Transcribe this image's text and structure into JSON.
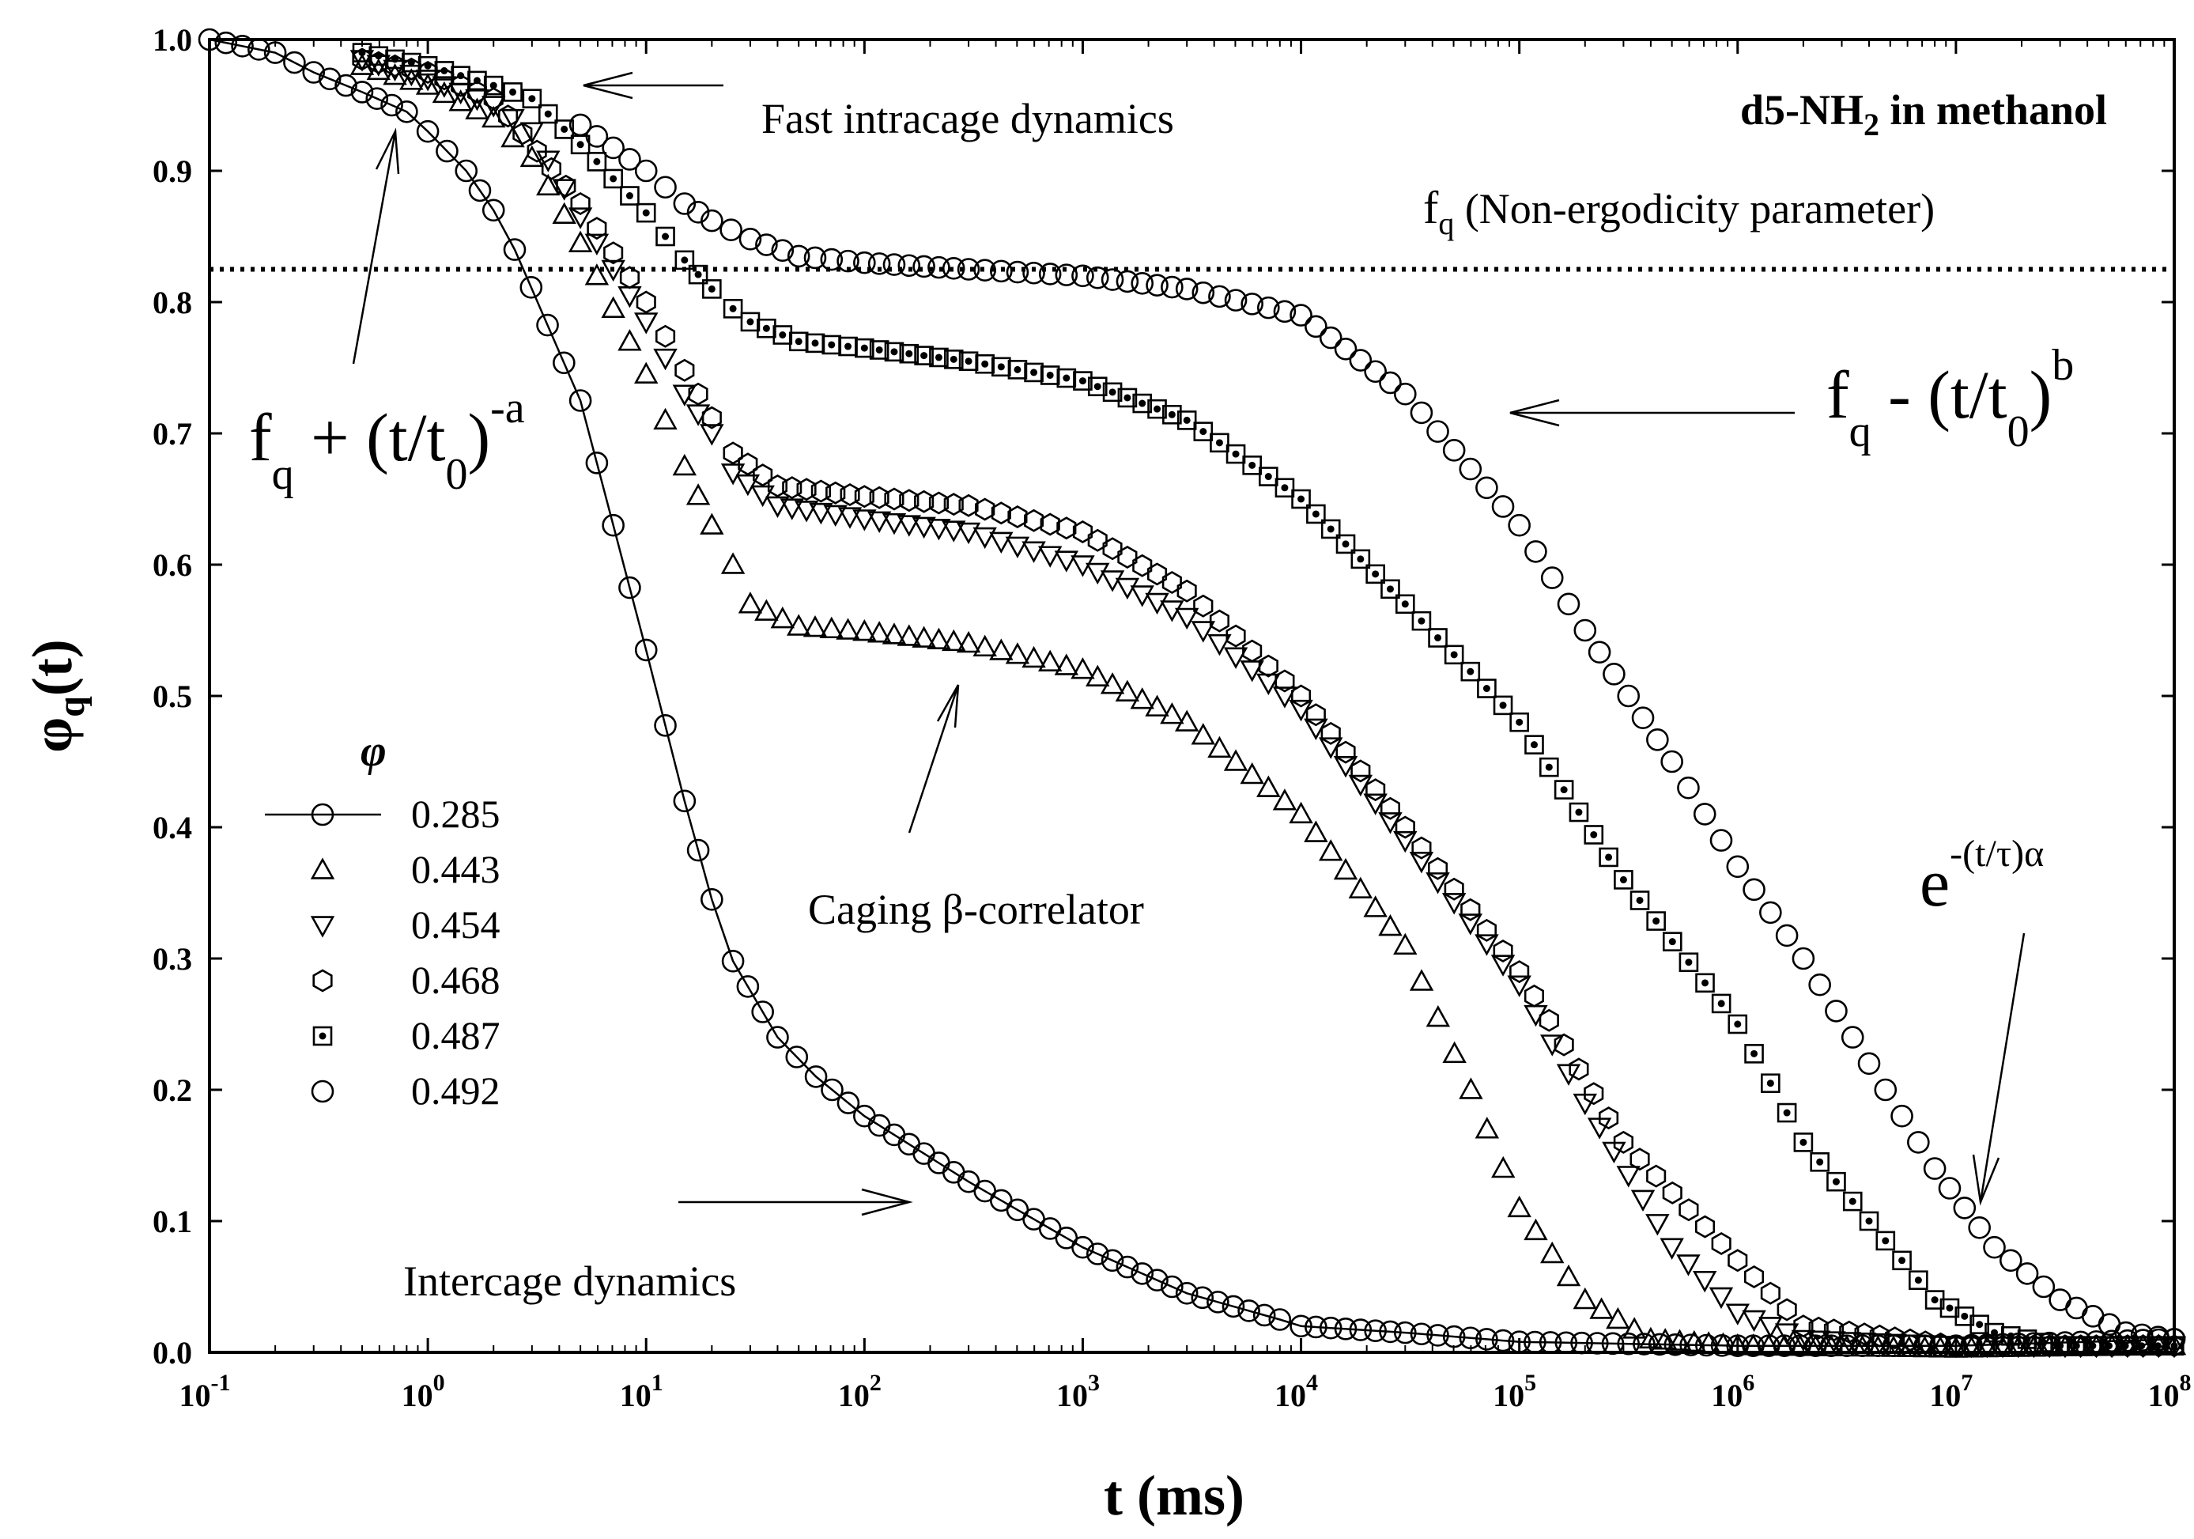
{
  "chart_data": {
    "type": "scatter",
    "title": "d5-NH2 in methanol",
    "title_main": "d5-NH",
    "title_sub": "2",
    "title_rest": " in methanol",
    "xlabel": "t (ms)",
    "ylabel_main": "φ",
    "ylabel_sub": "q",
    "ylabel_rest": "(t)",
    "xscale": "log",
    "xlim": [
      0.1,
      100000000
    ],
    "ylim": [
      0.0,
      1.0
    ],
    "x_tick_exponents": [
      "-1",
      "0",
      "1",
      "2",
      "3",
      "4",
      "5",
      "6",
      "7",
      "8"
    ],
    "x_tick_base": "10",
    "y_ticks": [
      "0.0",
      "0.1",
      "0.2",
      "0.3",
      "0.4",
      "0.5",
      "0.6",
      "0.7",
      "0.8",
      "0.9",
      "1.0"
    ],
    "plateau_value": 0.825,
    "legend": {
      "title": "φ",
      "placement": "left-middle",
      "entries": [
        "0.285",
        "0.443",
        "0.454",
        "0.468",
        "0.487",
        "0.492"
      ]
    },
    "series": [
      {
        "name": "0.285",
        "marker": "circle",
        "line": true,
        "points": [
          [
            0.1,
            1.0
          ],
          [
            0.2,
            0.99
          ],
          [
            0.3,
            0.975
          ],
          [
            0.5,
            0.96
          ],
          [
            0.8,
            0.945
          ],
          [
            1,
            0.93
          ],
          [
            1.5,
            0.9
          ],
          [
            2,
            0.87
          ],
          [
            2.5,
            0.84
          ],
          [
            5,
            0.725
          ],
          [
            10,
            0.535
          ],
          [
            15,
            0.42
          ],
          [
            20,
            0.345
          ],
          [
            25,
            0.298
          ],
          [
            40,
            0.24
          ],
          [
            60,
            0.21
          ],
          [
            100,
            0.18
          ],
          [
            300,
            0.13
          ],
          [
            1000,
            0.08
          ],
          [
            3000,
            0.045
          ],
          [
            8000,
            0.025
          ],
          [
            10000,
            0.02
          ],
          [
            30000,
            0.015
          ],
          [
            100000,
            0.008
          ],
          [
            1000000,
            0.005
          ],
          [
            10000000,
            0.005
          ],
          [
            100000000,
            0.01
          ]
        ]
      },
      {
        "name": "0.443",
        "marker": "triangle-up",
        "line": false,
        "points": [
          [
            0.5,
            0.98
          ],
          [
            1,
            0.965
          ],
          [
            2,
            0.94
          ],
          [
            3,
            0.91
          ],
          [
            5,
            0.845
          ],
          [
            10,
            0.745
          ],
          [
            15,
            0.675
          ],
          [
            20,
            0.63
          ],
          [
            25,
            0.6
          ],
          [
            30,
            0.57
          ],
          [
            50,
            0.553
          ],
          [
            100,
            0.549
          ],
          [
            300,
            0.54
          ],
          [
            1000,
            0.52
          ],
          [
            3000,
            0.48
          ],
          [
            10000,
            0.41
          ],
          [
            30000,
            0.31
          ],
          [
            60000,
            0.2
          ],
          [
            100000,
            0.11
          ],
          [
            200000,
            0.04
          ],
          [
            400000,
            0.01
          ],
          [
            1000000,
            0.005
          ],
          [
            10000000,
            0.003
          ],
          [
            100000000,
            0.005
          ]
        ]
      },
      {
        "name": "0.454",
        "marker": "triangle-down",
        "line": false,
        "points": [
          [
            0.5,
            0.985
          ],
          [
            1,
            0.97
          ],
          [
            2,
            0.95
          ],
          [
            3,
            0.93
          ],
          [
            5,
            0.865
          ],
          [
            10,
            0.785
          ],
          [
            15,
            0.73
          ],
          [
            20,
            0.7
          ],
          [
            25,
            0.67
          ],
          [
            40,
            0.645
          ],
          [
            100,
            0.635
          ],
          [
            300,
            0.625
          ],
          [
            1000,
            0.6
          ],
          [
            3000,
            0.56
          ],
          [
            10000,
            0.49
          ],
          [
            30000,
            0.39
          ],
          [
            100000,
            0.28
          ],
          [
            200000,
            0.19
          ],
          [
            500000,
            0.08
          ],
          [
            1000000,
            0.03
          ],
          [
            2000000,
            0.01
          ],
          [
            10000000,
            0.005
          ],
          [
            100000000,
            0.005
          ]
        ]
      },
      {
        "name": "0.468",
        "marker": "hexagon",
        "line": false,
        "points": [
          [
            0.5,
            0.985
          ],
          [
            1,
            0.975
          ],
          [
            2,
            0.955
          ],
          [
            5,
            0.875
          ],
          [
            10,
            0.8
          ],
          [
            15,
            0.748
          ],
          [
            20,
            0.712
          ],
          [
            25,
            0.685
          ],
          [
            40,
            0.66
          ],
          [
            100,
            0.652
          ],
          [
            300,
            0.645
          ],
          [
            1000,
            0.625
          ],
          [
            3000,
            0.58
          ],
          [
            10000,
            0.5
          ],
          [
            30000,
            0.4
          ],
          [
            100000,
            0.29
          ],
          [
            300000,
            0.16
          ],
          [
            1000000,
            0.07
          ],
          [
            2000000,
            0.02
          ],
          [
            10000000,
            0.005
          ],
          [
            100000000,
            0.005
          ]
        ]
      },
      {
        "name": "0.487",
        "marker": "square-dot",
        "line": false,
        "points": [
          [
            0.5,
            0.99
          ],
          [
            1,
            0.98
          ],
          [
            2,
            0.965
          ],
          [
            3,
            0.955
          ],
          [
            5,
            0.92
          ],
          [
            10,
            0.868
          ],
          [
            15,
            0.832
          ],
          [
            20,
            0.81
          ],
          [
            25,
            0.795
          ],
          [
            30,
            0.785
          ],
          [
            50,
            0.77
          ],
          [
            100,
            0.765
          ],
          [
            300,
            0.755
          ],
          [
            1000,
            0.74
          ],
          [
            3000,
            0.71
          ],
          [
            10000,
            0.65
          ],
          [
            30000,
            0.57
          ],
          [
            100000,
            0.48
          ],
          [
            300000,
            0.36
          ],
          [
            1000000,
            0.25
          ],
          [
            2000000,
            0.16
          ],
          [
            4000000,
            0.1
          ],
          [
            8000000,
            0.04
          ],
          [
            15000000,
            0.015
          ],
          [
            30000000,
            0.005
          ],
          [
            100000000,
            0.005
          ]
        ]
      },
      {
        "name": "0.492",
        "marker": "circle-light",
        "line": false,
        "points": [
          [
            5,
            0.935
          ],
          [
            10,
            0.9
          ],
          [
            15,
            0.875
          ],
          [
            20,
            0.862
          ],
          [
            30,
            0.848
          ],
          [
            50,
            0.835
          ],
          [
            100,
            0.83
          ],
          [
            300,
            0.825
          ],
          [
            1000,
            0.82
          ],
          [
            3000,
            0.81
          ],
          [
            10000,
            0.79
          ],
          [
            30000,
            0.73
          ],
          [
            100000,
            0.63
          ],
          [
            200000,
            0.55
          ],
          [
            500000,
            0.45
          ],
          [
            1000000,
            0.37
          ],
          [
            2000000,
            0.3
          ],
          [
            4000000,
            0.22
          ],
          [
            8000000,
            0.14
          ],
          [
            15000000,
            0.08
          ],
          [
            30000000,
            0.04
          ],
          [
            60000000,
            0.015
          ],
          [
            100000000,
            0.01
          ]
        ]
      }
    ],
    "annotations": {
      "fast": "Fast intracage dynamics",
      "fq_main": "f",
      "fq_sub": "q",
      "fq_desc": " (Non-ergodicity parameter)",
      "caging": "Caging β-correlator",
      "intercage": "Intercage dynamics",
      "left_formula": {
        "f": "f",
        "q": "q",
        "mid": " + (t/t",
        "zero": "0",
        "close": ")",
        "sup": "-a"
      },
      "right_formula": {
        "f": "f",
        "q": "q",
        "mid": " - (t/t",
        "zero": "0",
        "close": ")",
        "sup": "b"
      },
      "kww": {
        "e": "e",
        "sup": "-(t/τ)α"
      }
    }
  }
}
